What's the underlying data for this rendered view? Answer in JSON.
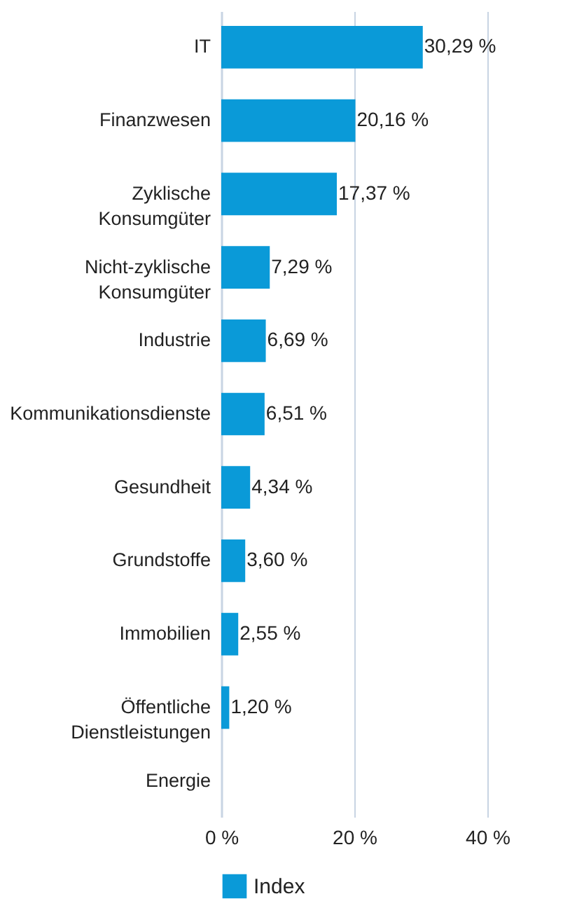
{
  "chart_data": {
    "type": "bar",
    "orientation": "horizontal",
    "categories": [
      "IT",
      "Finanzwesen",
      "Zyklische Konsumgüter",
      "Nicht-zyklische Konsumgüter",
      "Industrie",
      "Kommunikationsdienste",
      "Gesundheit",
      "Grundstoffe",
      "Immobilien",
      "Öffentliche Dienstleistungen",
      "Energie"
    ],
    "series": [
      {
        "name": "Index",
        "color": "#0a9ad8",
        "values": [
          30.29,
          20.16,
          17.37,
          7.29,
          6.69,
          6.51,
          4.34,
          3.6,
          2.55,
          1.2,
          null
        ]
      }
    ],
    "value_labels": [
      "30,29 %",
      "20,16 %",
      "17,37 %",
      "7,29 %",
      "6,69 %",
      "6,51 %",
      "4,34 %",
      "3,60 %",
      "2,55 %",
      "1,20 %",
      null
    ],
    "xlim": [
      0,
      40
    ],
    "xticks": [
      {
        "value": 0,
        "label": "0 %"
      },
      {
        "value": 20,
        "label": "20 %"
      },
      {
        "value": 40,
        "label": "40 %"
      }
    ],
    "grid": "x",
    "legend": "bottom"
  }
}
